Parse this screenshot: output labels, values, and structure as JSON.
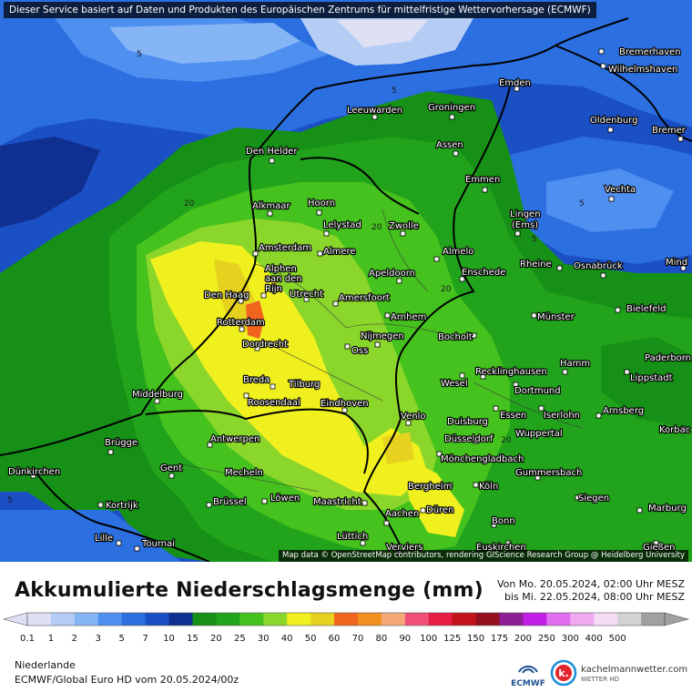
{
  "banner": "Dieser Service basiert auf Daten und Produkten des Europäischen Zentrums für mittelfristige Wettervorhersage (ECMWF)",
  "credit": "Map data © OpenStreetMap contributors, rendering GIScience Research Group @ Heidelberg University",
  "title": "Akkumulierte Niederschlagsmenge (mm)",
  "period": {
    "from": "Von Mo. 20.05.2024, 02:00 Uhr MESZ",
    "to": "bis Mi. 22.05.2024, 08:00 Uhr MESZ"
  },
  "region": "Niederlande",
  "model": "ECMWF/Global Euro HD vom  20.05.2024/00z",
  "logos": {
    "ecmwf": "ECMWF",
    "site": "kachelmannwetter.com",
    "site_sub": "WETTER HD"
  },
  "colors": {
    "sea": "#2a5dd6",
    "deep_blue": "#123f9e",
    "green": "#22a31c",
    "light_green": "#7dd620",
    "yellow": "#f0f01e",
    "orange": "#f0641e"
  },
  "legend": {
    "colors": [
      "#e0e0f5",
      "#b5cdf5",
      "#85b5f5",
      "#4f8ff0",
      "#2b6fe0",
      "#1b4fc4",
      "#0f3090",
      "#169016",
      "#22a31c",
      "#45c21e",
      "#8ad62a",
      "#f0f01e",
      "#e6d21e",
      "#f0641e",
      "#f0901e",
      "#f5a878",
      "#f05078",
      "#e61e46",
      "#c3141e",
      "#960f1e",
      "#8c1e96",
      "#c31ee6",
      "#e16ef0",
      "#f0aaf0",
      "#f5ddf5",
      "#d2d2d2",
      "#a0a0a0"
    ],
    "labels": [
      "0.1",
      "1",
      "2",
      "3",
      "5",
      "7",
      "10",
      "15",
      "20",
      "25",
      "30",
      "40",
      "50",
      "60",
      "70",
      "80",
      "90",
      "100",
      "125",
      "150",
      "175",
      "200",
      "250",
      "300",
      "400",
      "500"
    ]
  },
  "isolines": [
    "5",
    "5",
    "20",
    "5",
    "20",
    "20",
    "5",
    "5",
    "20"
  ],
  "cities": [
    {
      "name": "Bremerhaven",
      "icon": "city-dot-icon"
    },
    {
      "name": "Wilhelmshaven",
      "icon": "city-dot-icon"
    },
    {
      "name": "Emden",
      "icon": "city-dot-icon"
    },
    {
      "name": "Leeuwarden",
      "icon": "city-dot-icon"
    },
    {
      "name": "Groningen",
      "icon": "city-dot-icon"
    },
    {
      "name": "Oldenburg",
      "icon": "city-dot-icon"
    },
    {
      "name": "Bremer",
      "icon": "city-dot-icon"
    },
    {
      "name": "Den Helder",
      "icon": "city-dot-icon"
    },
    {
      "name": "Assen",
      "icon": "city-dot-icon"
    },
    {
      "name": "Emmen",
      "icon": "city-dot-icon"
    },
    {
      "name": "Vechta",
      "icon": "city-dot-icon"
    },
    {
      "name": "Alkmaar",
      "icon": "city-dot-icon"
    },
    {
      "name": "Hoorn",
      "icon": "city-dot-icon"
    },
    {
      "name": "Lelystad",
      "icon": "city-dot-icon"
    },
    {
      "name": "Zwolle",
      "icon": "city-dot-icon"
    },
    {
      "name": "Lingen",
      "icon": "city-dot-icon"
    },
    {
      "name": "(Ems)",
      "icon": "city-dot-icon"
    },
    {
      "name": "Amsterdam",
      "icon": "city-dot-icon"
    },
    {
      "name": "Almere",
      "icon": "city-dot-icon"
    },
    {
      "name": "Almelo",
      "icon": "city-dot-icon"
    },
    {
      "name": "Rheine",
      "icon": "city-dot-icon"
    },
    {
      "name": "Osnabrück",
      "icon": "city-dot-icon"
    },
    {
      "name": "Mind",
      "icon": "city-dot-icon"
    },
    {
      "name": "Alphen",
      "icon": "city-dot-icon"
    },
    {
      "name": "aan den",
      "icon": "city-dot-icon"
    },
    {
      "name": "Rijn",
      "icon": "city-dot-icon"
    },
    {
      "name": "Apeldoorn",
      "icon": "city-dot-icon"
    },
    {
      "name": "Enschede",
      "icon": "city-dot-icon"
    },
    {
      "name": "Den Haag",
      "icon": "city-dot-icon"
    },
    {
      "name": "Utrecht",
      "icon": "city-dot-icon"
    },
    {
      "name": "Amersfoort",
      "icon": "city-dot-icon"
    },
    {
      "name": "Bielefeld",
      "icon": "city-dot-icon"
    },
    {
      "name": "Arnhem",
      "icon": "city-dot-icon"
    },
    {
      "name": "Münster",
      "icon": "city-dot-icon"
    },
    {
      "name": "Rotterdam",
      "icon": "city-dot-icon"
    },
    {
      "name": "Nijmegen",
      "icon": "city-dot-icon"
    },
    {
      "name": "Bocholt",
      "icon": "city-dot-icon"
    },
    {
      "name": "Dordrecht",
      "icon": "city-dot-icon"
    },
    {
      "name": "Oss",
      "icon": "city-dot-icon"
    },
    {
      "name": "Paderborn",
      "icon": "city-dot-icon"
    },
    {
      "name": "Hamm",
      "icon": "city-dot-icon"
    },
    {
      "name": "Recklinghausen",
      "icon": "city-dot-icon"
    },
    {
      "name": "Lippstadt",
      "icon": "city-dot-icon"
    },
    {
      "name": "Breda",
      "icon": "city-dot-icon"
    },
    {
      "name": "Tilburg",
      "icon": "city-dot-icon"
    },
    {
      "name": "Wesel",
      "icon": "city-dot-icon"
    },
    {
      "name": "Dortmund",
      "icon": "city-dot-icon"
    },
    {
      "name": "Middelburg",
      "icon": "city-dot-icon"
    },
    {
      "name": "Roosendaal",
      "icon": "city-dot-icon"
    },
    {
      "name": "Eindhoven",
      "icon": "city-dot-icon"
    },
    {
      "name": "Arnsberg",
      "icon": "city-dot-icon"
    },
    {
      "name": "Essen",
      "icon": "city-dot-icon"
    },
    {
      "name": "Iserlohn",
      "icon": "city-dot-icon"
    },
    {
      "name": "Venlo",
      "icon": "city-dot-icon"
    },
    {
      "name": "Duisburg",
      "icon": "city-dot-icon"
    },
    {
      "name": "Korbac",
      "icon": "city-dot-icon"
    },
    {
      "name": "Wuppertal",
      "icon": "city-dot-icon"
    },
    {
      "name": "Antwerpen",
      "icon": "city-dot-icon"
    },
    {
      "name": "Düsseldorf",
      "icon": "city-dot-icon"
    },
    {
      "name": "Brügge",
      "icon": "city-dot-icon"
    },
    {
      "name": "Mönchengladbach",
      "icon": "city-dot-icon"
    },
    {
      "name": "Dünkirchen",
      "icon": "city-dot-icon"
    },
    {
      "name": "Gent",
      "icon": "city-dot-icon"
    },
    {
      "name": "Mecheln",
      "icon": "city-dot-icon"
    },
    {
      "name": "Gummersbach",
      "icon": "city-dot-icon"
    },
    {
      "name": "Bergheim",
      "icon": "city-dot-icon"
    },
    {
      "name": "Köln",
      "icon": "city-dot-icon"
    },
    {
      "name": "Siegen",
      "icon": "city-dot-icon"
    },
    {
      "name": "Brüssel",
      "icon": "city-dot-icon"
    },
    {
      "name": "Löwen",
      "icon": "city-dot-icon"
    },
    {
      "name": "Maastricht",
      "icon": "city-dot-icon"
    },
    {
      "name": "Düren",
      "icon": "city-dot-icon"
    },
    {
      "name": "Kortrijk",
      "icon": "city-dot-icon"
    },
    {
      "name": "Marburg",
      "icon": "city-dot-icon"
    },
    {
      "name": "Aachen",
      "icon": "city-dot-icon"
    },
    {
      "name": "Bonn",
      "icon": "city-dot-icon"
    },
    {
      "name": "Lille",
      "icon": "city-dot-icon"
    },
    {
      "name": "Lüttich",
      "icon": "city-dot-icon"
    },
    {
      "name": "Tournai",
      "icon": "city-dot-icon"
    },
    {
      "name": "Verviers",
      "icon": "city-dot-icon"
    },
    {
      "name": "Euskirchen",
      "icon": "city-dot-icon"
    },
    {
      "name": "Gießen",
      "icon": "city-dot-icon"
    }
  ]
}
